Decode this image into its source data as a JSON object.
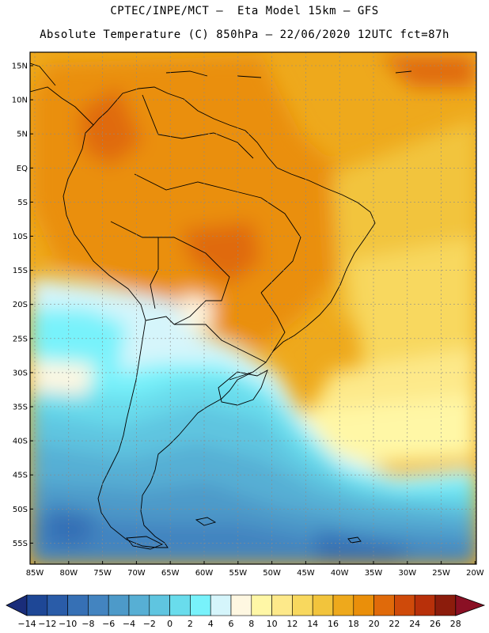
{
  "header": {
    "line1": "CPTEC/INPE/MCT –  Eta Model 15km – GFS",
    "line2": "Absolute Temperature (C) 850hPa – 22/06/2020 12UTC fct=87h"
  },
  "map": {
    "lat_ticks": [
      "15N",
      "10N",
      "5N",
      "EQ",
      "5S",
      "10S",
      "15S",
      "20S",
      "25S",
      "30S",
      "35S",
      "40S",
      "45S",
      "50S",
      "55S"
    ],
    "lon_ticks": [
      "85W",
      "80W",
      "75W",
      "70W",
      "65W",
      "60W",
      "55W",
      "50W",
      "45W",
      "40W",
      "35W",
      "30W",
      "25W",
      "20W"
    ]
  },
  "colorbar": {
    "labels": [
      "-14",
      "-12",
      "-10",
      "-8",
      "-6",
      "-4",
      "-2",
      "0",
      "2",
      "4",
      "6",
      "8",
      "10",
      "12",
      "14",
      "16",
      "18",
      "20",
      "22",
      "24",
      "26",
      "28"
    ],
    "colors": [
      "#1e4796",
      "#2a5ca8",
      "#3670b5",
      "#4384c0",
      "#4d9ac9",
      "#57afd4",
      "#5fc5e0",
      "#69dcec",
      "#78f2fb",
      "#d5f5fb",
      "#fef7e1",
      "#fff7a6",
      "#fde98a",
      "#f8d85e",
      "#f2c43c",
      "#eea91c",
      "#ea8f0a",
      "#e06a0a",
      "#cf4a0a",
      "#b8300a",
      "#8c1c0c"
    ],
    "low_arrow_color": "#1a2d7a",
    "high_arrow_color": "#8a1024"
  }
}
